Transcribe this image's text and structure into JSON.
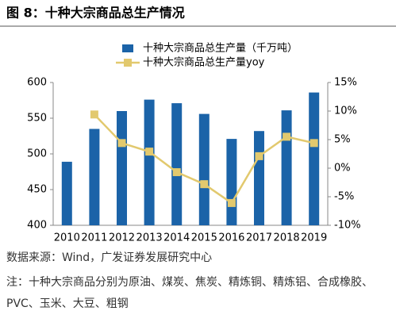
{
  "chart_data": {
    "type": "bar_line",
    "title": "图 8：十种大宗商品总生产情况",
    "categories": [
      "2010",
      "2011",
      "2012",
      "2013",
      "2014",
      "2015",
      "2016",
      "2017",
      "2018",
      "2019"
    ],
    "series": [
      {
        "name": "十种大宗商品总生产量（千万吨）",
        "color": "#1b63a8",
        "type": "bar",
        "values": [
          489,
          535,
          560,
          576,
          571,
          556,
          521,
          532,
          561,
          586
        ]
      },
      {
        "name": "十种大宗商品总生产量yoy",
        "color": "#e2c96e",
        "type": "line",
        "axis": "y2",
        "values": [
          null,
          9.4,
          4.4,
          2.9,
          -0.7,
          -2.8,
          -6.1,
          2.1,
          5.5,
          4.4
        ]
      }
    ],
    "ylim": [
      400,
      600
    ],
    "yticks": [
      400,
      450,
      500,
      550,
      600
    ],
    "y2lim": [
      -10,
      15
    ],
    "y2ticks": [
      {
        "value": -10,
        "label": "-10%"
      },
      {
        "value": -5,
        "label": "-5%"
      },
      {
        "value": 0,
        "label": "0%"
      },
      {
        "value": 5,
        "label": "5%"
      },
      {
        "value": 10,
        "label": "10%"
      },
      {
        "value": 15,
        "label": "15%"
      }
    ],
    "legend": "top"
  },
  "source": "数据来源：Wind，广发证券发展研究中心",
  "note": "注：十种大宗商品分别为原油、煤炭、焦炭、精炼铜、精炼铝、合成橡胶、PVC、玉米、大豆、粗钢"
}
